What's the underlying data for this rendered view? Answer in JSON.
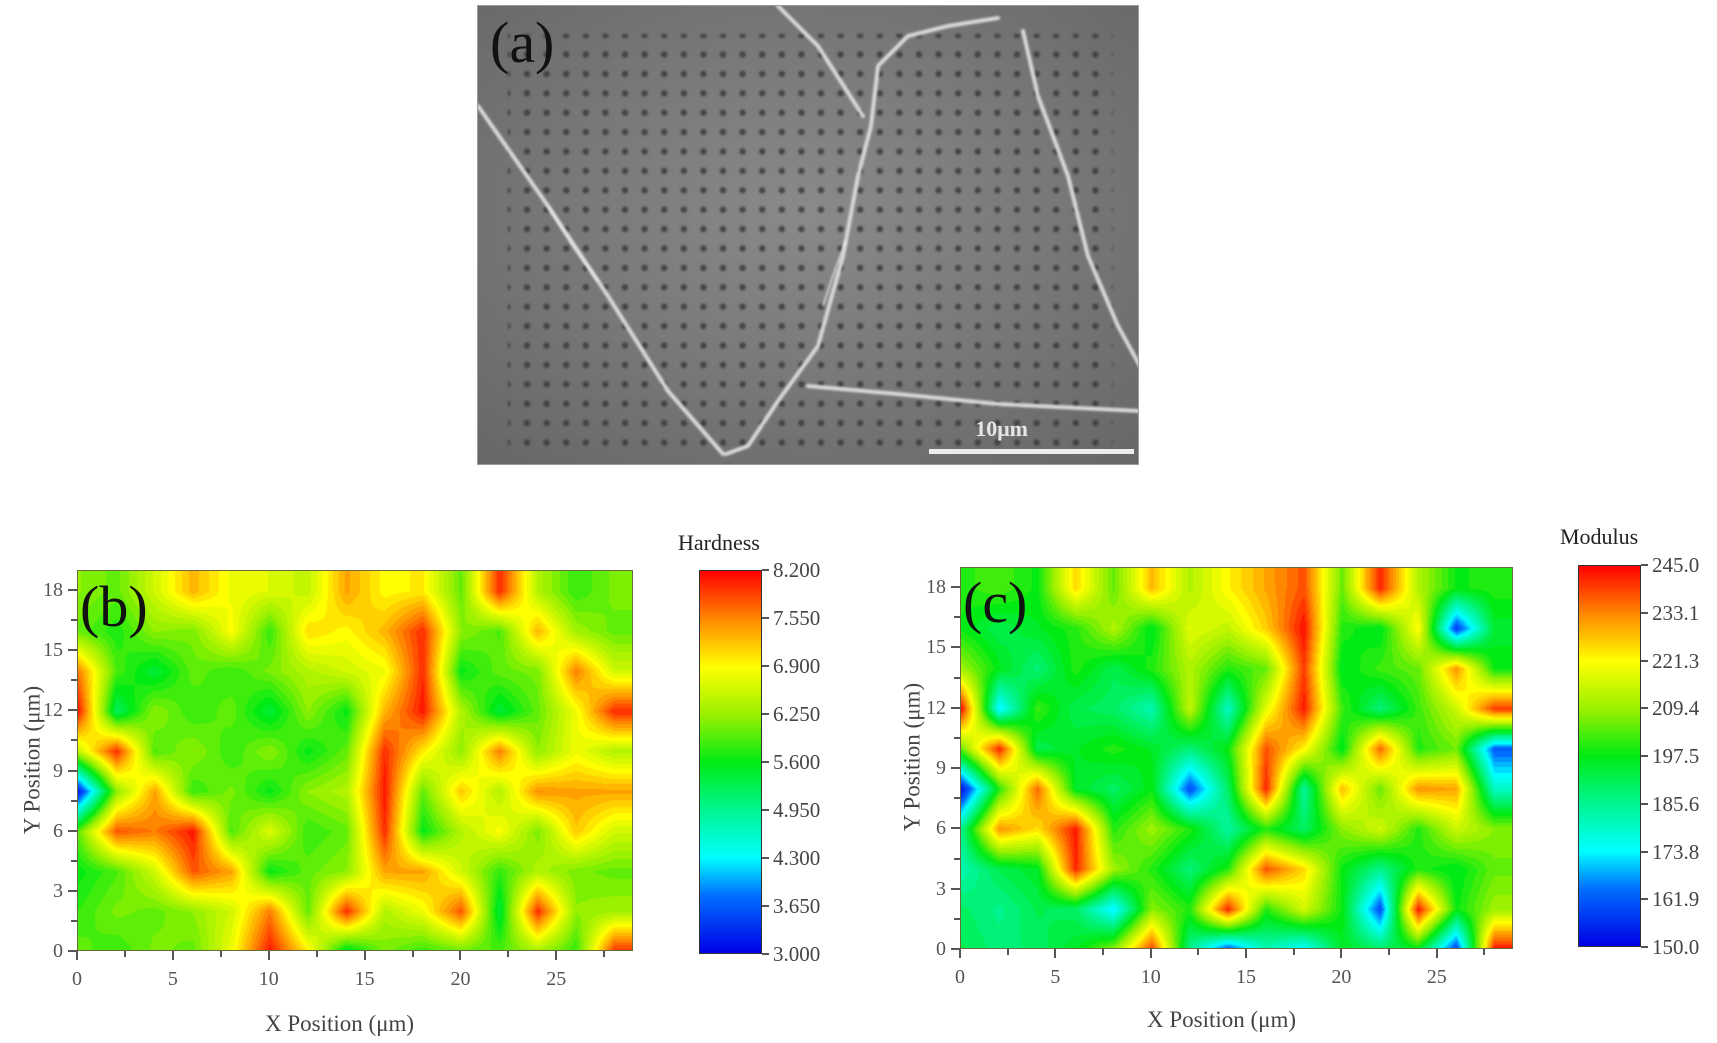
{
  "figure": {
    "panel_a": {
      "label": "(a)",
      "description": "SEM micrograph of nanoindentation array across grain boundaries",
      "scalebar_text": "10μm"
    },
    "panel_b": {
      "label": "(b)",
      "colorbar_title": "Hardness",
      "colorbar_ticks": [
        "8.200",
        "7.550",
        "6.900",
        "6.250",
        "5.600",
        "4.950",
        "4.300",
        "3.650",
        "3.000"
      ]
    },
    "panel_c": {
      "label": "(c)",
      "colorbar_title": "Modulus",
      "colorbar_ticks": [
        "245.0",
        "233.1",
        "221.3",
        "209.4",
        "197.5",
        "185.6",
        "173.8",
        "161.9",
        "150.0"
      ]
    },
    "axes": {
      "xlabel": "X Position (μm)",
      "ylabel": "Y Position (μm)",
      "xticks": [
        "0",
        "5",
        "10",
        "15",
        "20",
        "25"
      ],
      "yticks": [
        "0",
        "3",
        "6",
        "9",
        "12",
        "15",
        "18"
      ]
    }
  },
  "chart_data": [
    {
      "type": "heatmap",
      "title": "(b) Hardness",
      "xlabel": "X Position (μm)",
      "ylabel": "Y Position (μm)",
      "xlim": [
        0,
        29
      ],
      "ylim": [
        0,
        19
      ],
      "xticks": [
        0,
        5,
        10,
        15,
        20,
        25
      ],
      "yticks": [
        0,
        3,
        6,
        9,
        12,
        15,
        18
      ],
      "colorbar": {
        "label": "Hardness",
        "min": 3.0,
        "max": 8.2,
        "ticks": [
          3.0,
          3.65,
          4.3,
          4.95,
          5.6,
          6.25,
          6.9,
          7.55,
          8.2
        ],
        "colormap": "jet"
      },
      "grid_x": [
        0,
        2,
        4,
        6,
        8,
        10,
        12,
        14,
        16,
        18,
        20,
        22,
        24,
        26,
        28
      ],
      "grid_y": [
        18,
        16,
        14,
        12,
        10,
        8,
        6,
        4,
        2,
        0
      ],
      "values": [
        [
          6.2,
          6.0,
          6.6,
          7.3,
          6.8,
          6.7,
          6.5,
          7.4,
          6.9,
          7.0,
          6.0,
          8.0,
          6.4,
          5.8,
          6.1
        ],
        [
          6.0,
          5.7,
          6.2,
          6.1,
          6.9,
          5.8,
          7.1,
          6.9,
          7.3,
          8.0,
          6.2,
          5.9,
          7.3,
          6.3,
          6.0
        ],
        [
          7.6,
          5.9,
          5.4,
          6.0,
          5.8,
          6.1,
          6.4,
          6.6,
          6.8,
          8.0,
          5.6,
          6.0,
          6.1,
          7.6,
          6.6
        ],
        [
          8.1,
          5.2,
          6.2,
          5.8,
          6.0,
          5.4,
          6.2,
          5.6,
          7.3,
          8.1,
          6.4,
          5.4,
          6.0,
          6.8,
          8.0
        ],
        [
          6.5,
          8.0,
          5.9,
          6.2,
          5.8,
          6.2,
          5.6,
          6.0,
          8.0,
          7.0,
          6.2,
          7.6,
          6.2,
          6.8,
          6.4
        ],
        [
          3.2,
          6.2,
          7.4,
          5.8,
          6.1,
          5.6,
          6.2,
          6.4,
          8.1,
          6.0,
          7.2,
          6.4,
          7.5,
          7.4,
          7.4
        ],
        [
          6.0,
          7.8,
          7.6,
          8.1,
          5.9,
          6.7,
          5.8,
          6.0,
          8.0,
          5.6,
          6.4,
          6.9,
          6.1,
          7.2,
          6.6
        ],
        [
          5.6,
          5.9,
          6.6,
          7.8,
          7.4,
          5.6,
          6.0,
          6.2,
          7.4,
          7.4,
          6.6,
          5.8,
          6.4,
          6.1,
          6.0
        ],
        [
          5.8,
          6.1,
          6.0,
          6.2,
          6.6,
          7.6,
          6.0,
          8.0,
          6.4,
          6.8,
          7.8,
          5.4,
          8.0,
          6.2,
          6.3
        ],
        [
          6.0,
          5.8,
          6.1,
          6.0,
          6.8,
          8.1,
          7.0,
          5.4,
          6.1,
          5.8,
          6.0,
          5.9,
          6.3,
          5.8,
          8.0
        ]
      ]
    },
    {
      "type": "heatmap",
      "title": "(c) Modulus",
      "xlabel": "X Position (μm)",
      "ylabel": "Y Position (μm)",
      "xlim": [
        0,
        29
      ],
      "ylim": [
        0,
        19
      ],
      "xticks": [
        0,
        5,
        10,
        15,
        20,
        25
      ],
      "yticks": [
        0,
        3,
        6,
        9,
        12,
        15,
        18
      ],
      "colorbar": {
        "label": "Modulus",
        "min": 150.0,
        "max": 245.0,
        "ticks": [
          150.0,
          161.9,
          173.8,
          185.6,
          197.5,
          209.4,
          221.3,
          233.1,
          245.0
        ],
        "colormap": "jet"
      },
      "grid_x": [
        0,
        2,
        4,
        6,
        8,
        10,
        12,
        14,
        16,
        18,
        20,
        22,
        24,
        26,
        28
      ],
      "grid_y": [
        18,
        16,
        14,
        12,
        10,
        8,
        6,
        4,
        2,
        0
      ],
      "values": [
        [
          200,
          203,
          198,
          225,
          205,
          228,
          212,
          222,
          230,
          238,
          205,
          242,
          212,
          198,
          200
        ],
        [
          198,
          192,
          196,
          200,
          212,
          196,
          218,
          214,
          226,
          244,
          200,
          196,
          222,
          158,
          195
        ],
        [
          210,
          197,
          188,
          200,
          192,
          200,
          212,
          200,
          205,
          240,
          196,
          202,
          205,
          232,
          198
        ],
        [
          244,
          172,
          202,
          192,
          190,
          182,
          214,
          180,
          218,
          243,
          202,
          188,
          202,
          215,
          240
        ],
        [
          205,
          242,
          192,
          196,
          200,
          196,
          188,
          198,
          238,
          222,
          196,
          236,
          200,
          206,
          162
        ],
        [
          152,
          200,
          236,
          196,
          190,
          198,
          160,
          190,
          242,
          184,
          228,
          205,
          232,
          230,
          180
        ],
        [
          186,
          232,
          224,
          243,
          200,
          210,
          200,
          184,
          200,
          190,
          208,
          216,
          200,
          215,
          208
        ],
        [
          182,
          192,
          196,
          242,
          210,
          200,
          188,
          200,
          238,
          225,
          198,
          186,
          200,
          196,
          205
        ],
        [
          190,
          186,
          192,
          190,
          172,
          208,
          200,
          242,
          200,
          216,
          198,
          160,
          243,
          198,
          210
        ],
        [
          192,
          188,
          190,
          196,
          208,
          240,
          186,
          160,
          182,
          172,
          196,
          190,
          196,
          158,
          244
        ]
      ]
    }
  ]
}
